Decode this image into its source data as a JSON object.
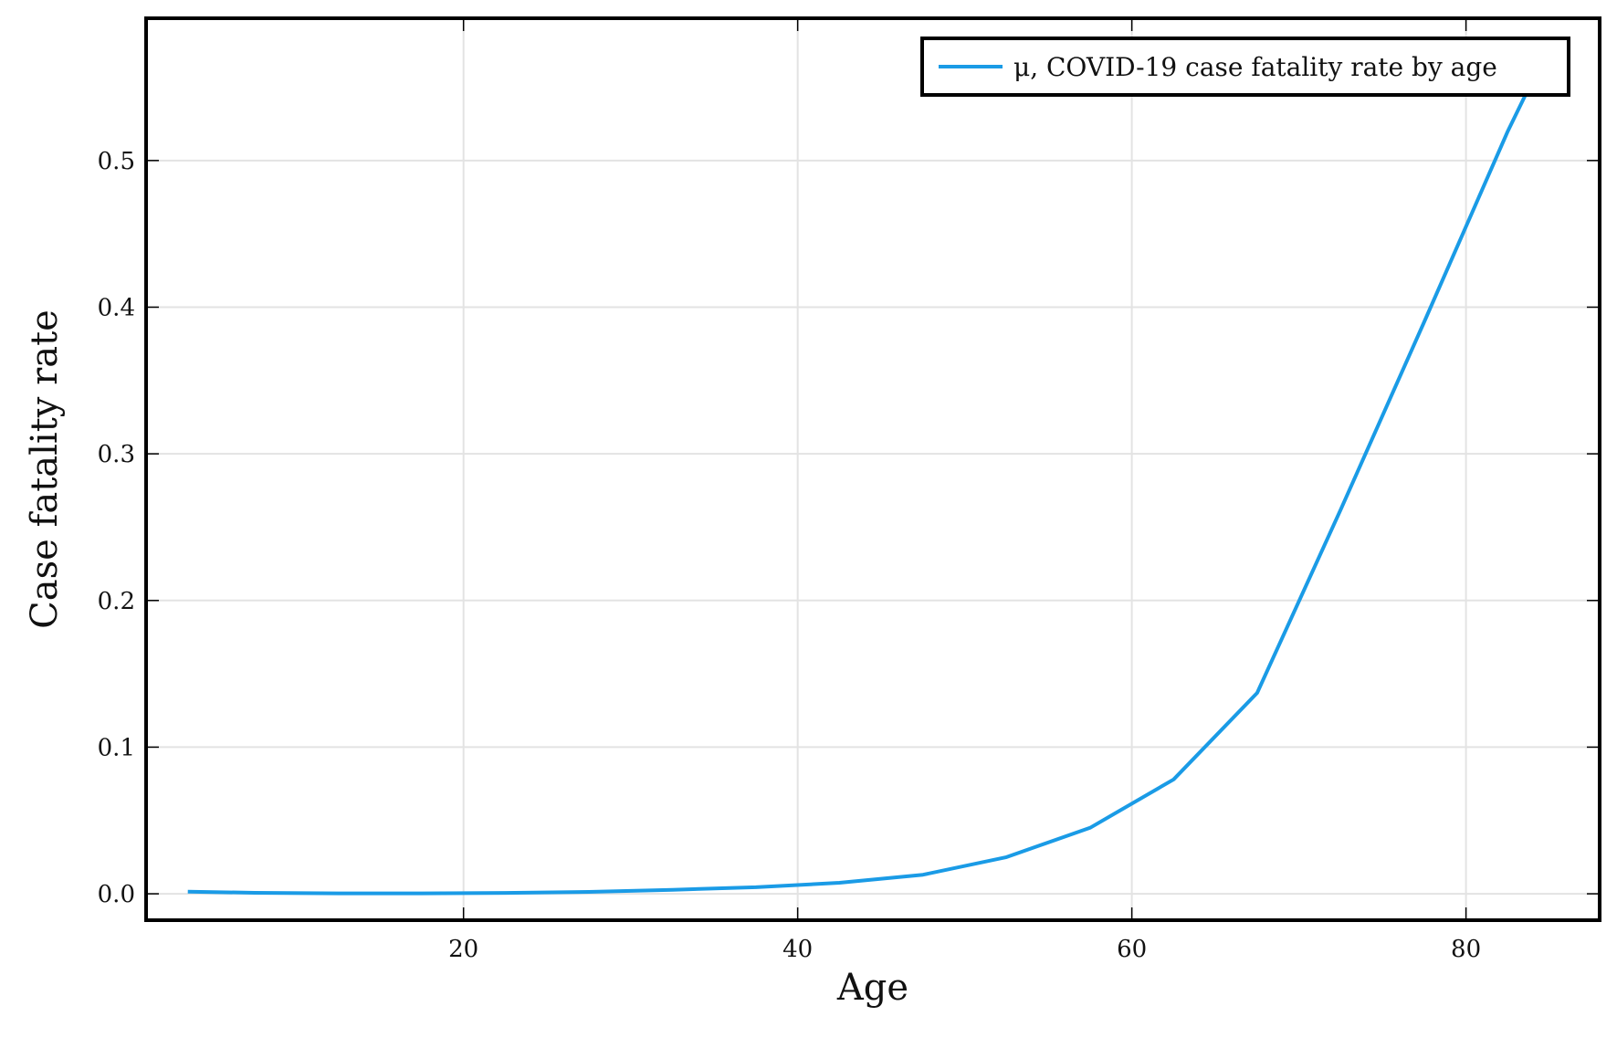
{
  "chart_data": {
    "type": "line",
    "title": "",
    "xlabel": "Age",
    "ylabel": "Case fatality rate",
    "xlim": [
      1,
      88
    ],
    "ylim": [
      -0.018,
      0.597
    ],
    "xticks": [
      20,
      40,
      60,
      80
    ],
    "yticks": [
      0.0,
      0.1,
      0.2,
      0.3,
      0.4,
      0.5
    ],
    "ytick_labels": [
      "0.0",
      "0.1",
      "0.2",
      "0.3",
      "0.4",
      "0.5"
    ],
    "grid": true,
    "legend_position": "top-right",
    "series": [
      {
        "name": "μ, COVID-19 case fatality rate by age",
        "color": "#1a9be6",
        "x": [
          3.5,
          7.5,
          12.5,
          17.5,
          22.5,
          27.5,
          32.5,
          37.5,
          42.5,
          47.5,
          52.5,
          57.5,
          62.5,
          67.5,
          72.5,
          77.5,
          82.5,
          84.0
        ],
        "y": [
          0.0015,
          0.0007,
          0.0003,
          0.0003,
          0.0006,
          0.0013,
          0.0027,
          0.0045,
          0.0075,
          0.013,
          0.025,
          0.045,
          0.078,
          0.137,
          0.262,
          0.39,
          0.52,
          0.555
        ]
      }
    ]
  }
}
